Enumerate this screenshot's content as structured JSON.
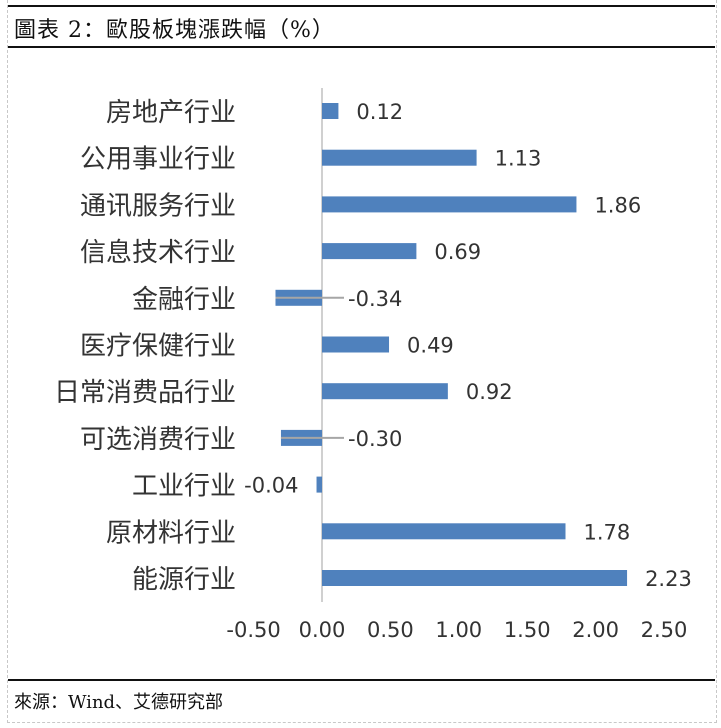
{
  "title": "圖表 2：歐股板塊漲跌幅（%）",
  "source": "來源：Wind、艾德研究部",
  "chart_data": {
    "type": "bar",
    "orientation": "horizontal",
    "title": "圖表 2：歐股板塊漲跌幅（%）",
    "categories": [
      "房地产行业",
      "公用事业行业",
      "通讯服务行业",
      "信息技术行业",
      "金融行业",
      "医疗保健行业",
      "日常消费品行业",
      "可选消费行业",
      "工业行业",
      "原材料行业",
      "能源行业"
    ],
    "values": [
      0.12,
      1.13,
      1.86,
      0.69,
      -0.34,
      0.49,
      0.92,
      -0.3,
      -0.04,
      1.78,
      2.23
    ],
    "data_labels": [
      "0.12",
      "1.13",
      "1.86",
      "0.69",
      "-0.34",
      "0.49",
      "0.92",
      "-0.30",
      "-0.04",
      "1.78",
      "2.23"
    ],
    "xlim": [
      -0.5,
      2.5
    ],
    "x_ticks": [
      "-0.50",
      "0.00",
      "0.50",
      "1.00",
      "1.50",
      "2.00",
      "2.50"
    ],
    "grid": false,
    "legend": "none",
    "bar_color": "#4F81BD",
    "xlabel": "",
    "ylabel": ""
  }
}
